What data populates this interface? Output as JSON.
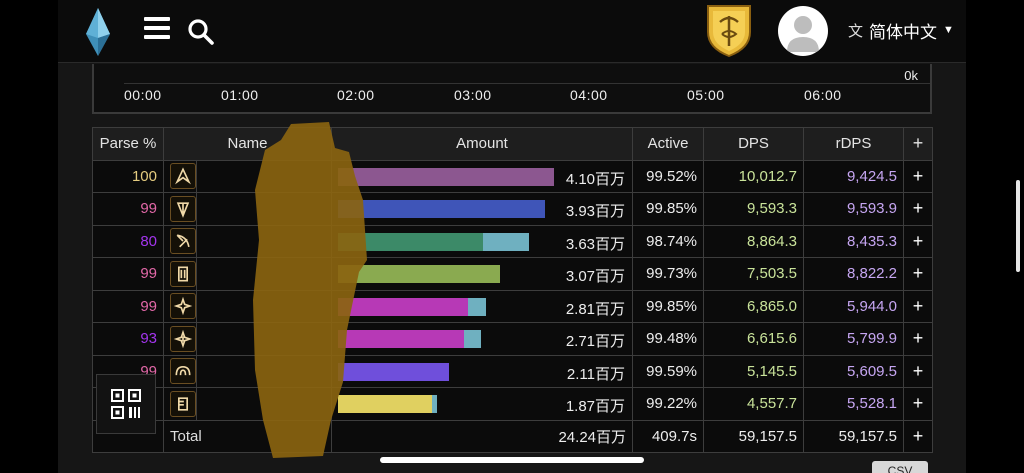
{
  "header": {
    "language_label": "简体中文",
    "icons": {
      "logo": "crystal-logo-icon",
      "menu": "hamburger-icon",
      "search": "search-icon",
      "crest": "guild-crest-icon",
      "avatar": "user-avatar-icon",
      "language": "translate-icon",
      "caret": "caret-down-icon"
    }
  },
  "timeline": {
    "max_label": "0k",
    "ticks": [
      "00:00",
      "01:00",
      "02:00",
      "03:00",
      "04:00",
      "05:00",
      "06:00"
    ]
  },
  "table": {
    "headers": {
      "parse": "Parse %",
      "name": "Name",
      "amount": "Amount",
      "active": "Active",
      "dps": "DPS",
      "rdps": "rDPS",
      "add": "+"
    },
    "rows": [
      {
        "parse": "100",
        "parse_color": "#e5cc80",
        "job_icon": "dragoon-job-icon",
        "amount": "4.10百万",
        "amount_value": 4.1,
        "active": "99.52%",
        "dps": "10,012.7",
        "rdps": "9,424.5",
        "bar_color": "#8c5790",
        "bar_secondary_fraction": 0.0,
        "add": "+"
      },
      {
        "parse": "99",
        "parse_color": "#e268a8",
        "job_icon": "paladin-job-icon",
        "amount": "3.93百万",
        "amount_value": 3.93,
        "active": "99.85%",
        "dps": "9,593.3",
        "rdps": "9,593.9",
        "bar_color": "#3f55b8",
        "bar_secondary_fraction": 0.0,
        "add": "+"
      },
      {
        "parse": "80",
        "parse_color": "#a335ee",
        "job_icon": "bard-job-icon",
        "amount": "3.63百万",
        "amount_value": 3.63,
        "active": "98.74%",
        "dps": "8,864.3",
        "rdps": "8,435.3",
        "bar_color": "#3c8a68",
        "bar_secondary_fraction": 0.24,
        "add": "+"
      },
      {
        "parse": "99",
        "parse_color": "#e268a8",
        "job_icon": "warrior-job-icon",
        "amount": "3.07百万",
        "amount_value": 3.07,
        "active": "99.73%",
        "dps": "7,503.5",
        "rdps": "8,822.2",
        "bar_color": "#8aaa50",
        "bar_secondary_fraction": 0.0,
        "add": "+"
      },
      {
        "parse": "99",
        "parse_color": "#e268a8",
        "job_icon": "astrologian-job-icon",
        "amount": "2.81百万",
        "amount_value": 2.81,
        "active": "99.85%",
        "dps": "6,865.0",
        "rdps": "5,944.0",
        "bar_color": "#b739b6",
        "bar_secondary_fraction": 0.12,
        "add": "+"
      },
      {
        "parse": "93",
        "parse_color": "#a335ee",
        "job_icon": "sage-job-icon",
        "amount": "2.71百万",
        "amount_value": 2.71,
        "active": "99.48%",
        "dps": "6,615.6",
        "rdps": "5,799.9",
        "bar_color": "#b739b6",
        "bar_secondary_fraction": 0.12,
        "add": "+"
      },
      {
        "parse": "99",
        "parse_color": "#e268a8",
        "job_icon": "summoner-job-icon",
        "amount": "2.11百万",
        "amount_value": 2.11,
        "active": "99.59%",
        "dps": "5,145.5",
        "rdps": "5,609.5",
        "bar_color": "#6f4fdb",
        "bar_secondary_fraction": 0.0,
        "add": "+"
      },
      {
        "parse": "",
        "parse_color": "#e268a8",
        "job_icon": "scholar-job-icon",
        "amount": "1.87百万",
        "amount_value": 1.87,
        "active": "99.22%",
        "dps": "4,557.7",
        "rdps": "5,528.1",
        "bar_color": "#e0d060",
        "bar_secondary_fraction": 0.05,
        "add": "+"
      }
    ],
    "total": {
      "parse": "",
      "name": "Total",
      "amount": "24.24百万",
      "active": "409.7s",
      "dps": "59,157.5",
      "rdps": "59,157.5",
      "add": "+"
    },
    "bar_secondary_color": "#6fb0c0",
    "bar_max_value": 4.1
  },
  "qr_button": {
    "icon": "qr-code-icon"
  },
  "footer": {
    "csv_label": "CSV"
  }
}
